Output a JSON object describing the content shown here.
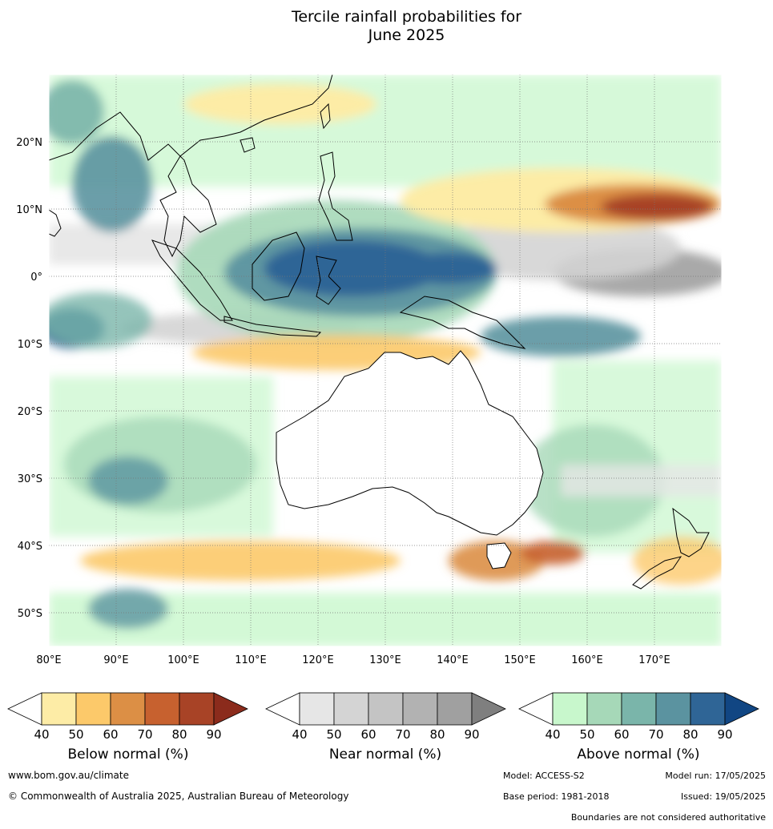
{
  "title": {
    "line1": "Tercile rainfall probabilities for",
    "line2": "June 2025"
  },
  "map": {
    "lon_labels": [
      "80°E",
      "90°E",
      "100°E",
      "110°E",
      "120°E",
      "130°E",
      "140°E",
      "150°E",
      "160°E",
      "170°E"
    ],
    "lat_labels": [
      "20°N",
      "10°N",
      "0°",
      "10°S",
      "20°S",
      "30°S",
      "40°S",
      "50°S"
    ],
    "lon_range": [
      80,
      180
    ],
    "lat_range": [
      -55,
      30
    ]
  },
  "legends": {
    "below": {
      "label": "Below normal (%)",
      "ticks": [
        "40",
        "50",
        "60",
        "70",
        "80",
        "90"
      ],
      "colors": [
        "#ffffff",
        "#fdeca6",
        "#fcc96a",
        "#dc8f45",
        "#c7612f",
        "#a84326",
        "#8b2b1c"
      ]
    },
    "near": {
      "label": "Near normal (%)",
      "ticks": [
        "40",
        "50",
        "60",
        "70",
        "80",
        "90"
      ],
      "colors": [
        "#ffffff",
        "#e6e6e6",
        "#d4d4d4",
        "#c4c4c4",
        "#b2b2b2",
        "#a0a0a0",
        "#7f7f7f"
      ]
    },
    "above": {
      "label": "Above normal (%)",
      "ticks": [
        "40",
        "50",
        "60",
        "70",
        "80",
        "90"
      ],
      "colors": [
        "#ffffff",
        "#c8f7cc",
        "#a6d8b8",
        "#7ab5aa",
        "#5b93a0",
        "#2f6596",
        "#114683"
      ]
    }
  },
  "footer": {
    "website": "www.bom.gov.au/climate",
    "copyright": "© Commonwealth of Australia 2025, Australian Bureau of Meteorology",
    "model": "Model: ACCESS-S2",
    "model_run": "Model run: 17/05/2025",
    "base_period": "Base period: 1981-2018",
    "issued": "Issued: 19/05/2025",
    "disclaimer": "Boundaries are not considered authoritative"
  }
}
